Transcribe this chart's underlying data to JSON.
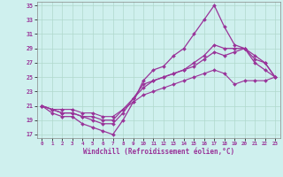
{
  "xlabel": "Windchill (Refroidissement éolien,°C)",
  "ylabel": "",
  "xlim": [
    -0.5,
    23.5
  ],
  "ylim": [
    16.5,
    35.5
  ],
  "yticks": [
    17,
    19,
    21,
    23,
    25,
    27,
    29,
    31,
    33,
    35
  ],
  "xticks": [
    0,
    1,
    2,
    3,
    4,
    5,
    6,
    7,
    8,
    9,
    10,
    11,
    12,
    13,
    14,
    15,
    16,
    17,
    18,
    19,
    20,
    21,
    22,
    23
  ],
  "bg_color": "#cff0ee",
  "grid_color": "#b0d8cc",
  "line_color": "#993399",
  "lines": [
    {
      "x": [
        0,
        1,
        2,
        3,
        4,
        5,
        6,
        7,
        8,
        9,
        10,
        11,
        12,
        13,
        14,
        15,
        16,
        17,
        18,
        19,
        20,
        21,
        22,
        23
      ],
      "y": [
        21,
        20,
        19.5,
        19.5,
        18.5,
        18,
        17.5,
        17,
        19,
        21.5,
        24.5,
        26,
        26.5,
        28,
        29,
        31,
        33,
        35,
        32,
        29.5,
        29,
        27,
        26,
        25
      ],
      "marker": "D",
      "markersize": 2.0,
      "linewidth": 0.9
    },
    {
      "x": [
        0,
        1,
        2,
        3,
        4,
        5,
        6,
        7,
        8,
        9,
        10,
        11,
        12,
        13,
        14,
        15,
        16,
        17,
        18,
        19,
        20,
        21,
        22,
        23
      ],
      "y": [
        21,
        20.5,
        20,
        20,
        19.5,
        19,
        18.5,
        18.5,
        20,
        22,
        24,
        24.5,
        25,
        25.5,
        26,
        27,
        28,
        29.5,
        29,
        29,
        29,
        27.5,
        27,
        25
      ],
      "marker": "D",
      "markersize": 2.0,
      "linewidth": 0.9
    },
    {
      "x": [
        0,
        1,
        2,
        3,
        4,
        5,
        6,
        7,
        8,
        9,
        10,
        11,
        12,
        13,
        14,
        15,
        16,
        17,
        18,
        19,
        20,
        21,
        22,
        23
      ],
      "y": [
        21,
        20.5,
        20,
        20,
        19.5,
        19.5,
        19,
        19,
        20.5,
        22,
        23.5,
        24.5,
        25,
        25.5,
        26,
        26.5,
        27.5,
        28.5,
        28,
        28.5,
        29,
        28,
        27,
        25
      ],
      "marker": "D",
      "markersize": 2.0,
      "linewidth": 0.9
    },
    {
      "x": [
        0,
        1,
        2,
        3,
        4,
        5,
        6,
        7,
        8,
        9,
        10,
        11,
        12,
        13,
        14,
        15,
        16,
        17,
        18,
        19,
        20,
        21,
        22,
        23
      ],
      "y": [
        21,
        20.5,
        20.5,
        20.5,
        20,
        20,
        19.5,
        19.5,
        20.5,
        21.5,
        22.5,
        23,
        23.5,
        24,
        24.5,
        25,
        25.5,
        26,
        25.5,
        24,
        24.5,
        24.5,
        24.5,
        25
      ],
      "marker": "D",
      "markersize": 2.0,
      "linewidth": 0.8
    }
  ]
}
